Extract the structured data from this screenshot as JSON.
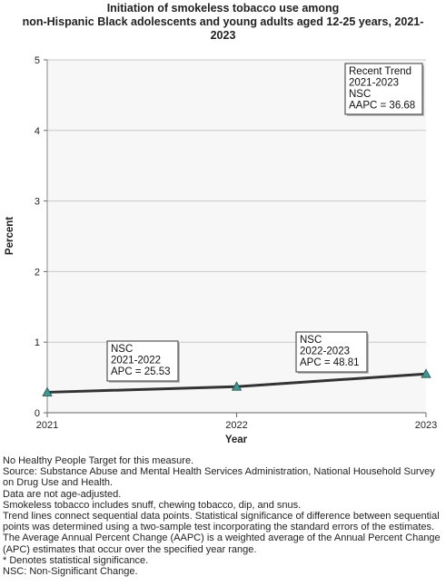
{
  "chart_data": {
    "type": "line",
    "title_lines": [
      "Initiation of smokeless tobacco use among",
      "non-Hispanic Black adolescents and young adults aged 12-25 years, 2021-",
      "2023"
    ],
    "xlabel": "Year",
    "ylabel": "Percent",
    "x": [
      "2021",
      "2022",
      "2023"
    ],
    "series": [
      {
        "values": [
          0.29,
          0.37,
          0.55
        ]
      }
    ],
    "ylim": [
      0,
      5
    ],
    "yticks": [
      "0",
      "1",
      "2",
      "3",
      "4",
      "5"
    ],
    "grid": true,
    "annotations": [
      {
        "lines": [
          "NSC",
          "2021-2022",
          "APC = 25.53"
        ]
      },
      {
        "lines": [
          "NSC",
          "2022-2023",
          "APC = 48.81"
        ]
      },
      {
        "lines": [
          "Recent Trend",
          "2021-2023",
          "NSC",
          "AAPC = 36.68"
        ]
      }
    ],
    "colors": {
      "line": "#333333",
      "marker": "#3a9a8f",
      "plot_bg": "#f7f7f7",
      "grid": "#c8c8c8"
    }
  },
  "footnotes": [
    "No Healthy People Target for this measure.",
    "Source: Substance Abuse and Mental Health Services Administration, National Household Survey on Drug Use and Health.",
    "Data are not age-adjusted.",
    "Smokeless tobacco includes snuff, chewing tobacco, dip, and snus.",
    "Trend lines connect sequential data points. Statistical significance of difference between sequential points was determined using a two-sample test incorporating the standard errors of the estimates.",
    "The Average Annual Percent Change (AAPC) is a weighted average of the Annual Percent Change (APC) estimates that occur over the specified year range.",
    "* Denotes statistical significance.",
    "NSC: Non-Significant Change."
  ]
}
